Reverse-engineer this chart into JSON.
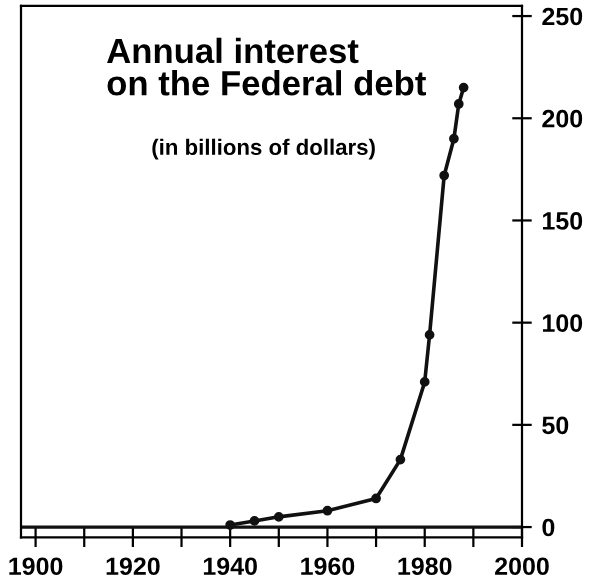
{
  "chart_data": {
    "type": "line",
    "title": "Annual interest\non the Federal debt",
    "subtitle": "(in billions of dollars)",
    "x": [
      1940,
      1945,
      1950,
      1960,
      1970,
      1975,
      1980,
      1981,
      1984,
      1986,
      1987,
      1988
    ],
    "series": [
      {
        "color": "#111111",
        "values": [
          1,
          3,
          5,
          8,
          14,
          33,
          71,
          94,
          172,
          190,
          207,
          215
        ]
      }
    ],
    "xlim": [
      1897,
      2000
    ],
    "ylim": [
      -5,
      255
    ],
    "xticks": [
      1900,
      {
        "value": 1910,
        "label": null
      },
      1920,
      {
        "value": 1930,
        "label": null
      },
      1940,
      {
        "value": 1950,
        "label": null
      },
      1960,
      {
        "value": 1970,
        "label": null
      },
      1980,
      {
        "value": 1990,
        "label": null
      },
      2000
    ],
    "yticks": [
      0,
      50,
      100,
      150,
      200,
      250
    ],
    "ref_lines": [
      {
        "axis": "y",
        "value": 0,
        "color": "#111111"
      }
    ],
    "marker": "circle",
    "line_style": "solid",
    "grid": false,
    "legend": false
  }
}
